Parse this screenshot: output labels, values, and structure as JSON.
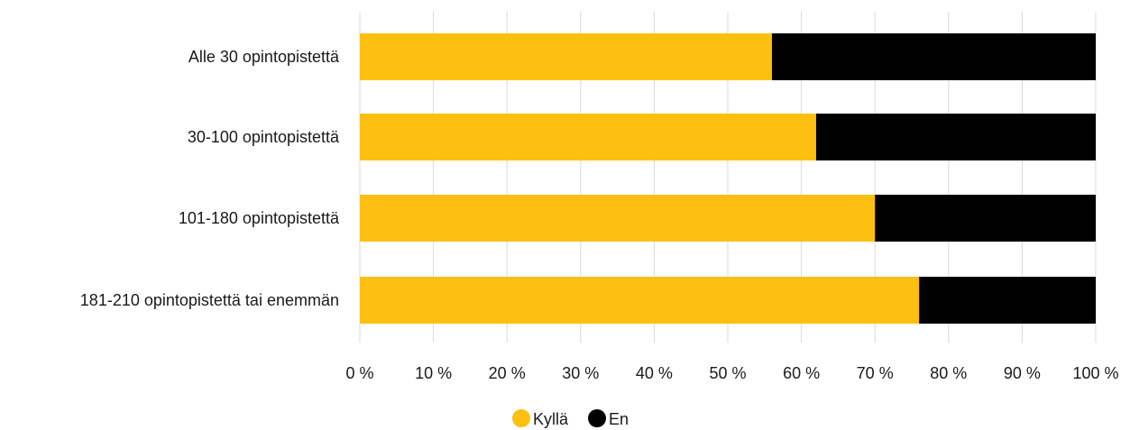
{
  "chart_data": {
    "type": "bar",
    "orientation": "horizontal",
    "stacked": true,
    "categories": [
      "Alle 30 opintopistettä",
      "30-100 opintopistettä",
      "101-180 opintopistettä",
      "181-210 opintopistettä tai enemmän"
    ],
    "series": [
      {
        "name": "Kyllä",
        "color": "#FDC010",
        "values": [
          56,
          62,
          70,
          76
        ]
      },
      {
        "name": "En",
        "color": "#000000",
        "values": [
          44,
          38,
          30,
          24
        ]
      }
    ],
    "xlim": [
      0,
      100
    ],
    "x_ticks": [
      0,
      10,
      20,
      30,
      40,
      50,
      60,
      70,
      80,
      90,
      100
    ],
    "x_tick_labels": [
      "0 %",
      "10 %",
      "20 %",
      "30 %",
      "40 %",
      "50 %",
      "60 %",
      "70 %",
      "80 %",
      "90 %",
      "100 %"
    ],
    "grid": true,
    "legend_position": "bottom"
  }
}
